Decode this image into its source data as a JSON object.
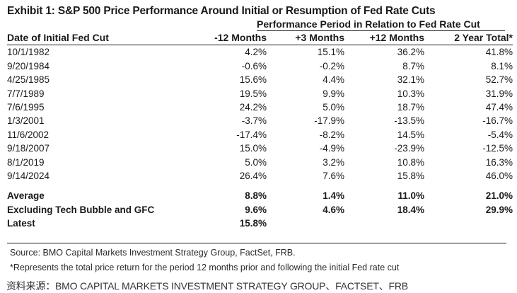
{
  "title": "Exhibit 1: S&P 500 Price Performance Around Initial or Resumption of Fed Rate Cuts",
  "performance_period_label": "Performance Period in Relation to Fed Rate Cut",
  "source": "Source: BMO Capital Markets Investment Strategy Group, FactSet, FRB.",
  "footnote": "*Represents the total price return for the period 12 months prior and following the initial Fed rate cut",
  "caption": "资料来源：BMO CAPITAL MARKETS INVESTMENT STRATEGY GROUP、FACTSET、FRB",
  "chart_data": {
    "type": "table",
    "title": "Exhibit 1: S&P 500 Price Performance Around Initial or Resumption of Fed Rate Cuts",
    "column_group_label": "Performance Period in Relation to Fed Rate Cut",
    "columns": [
      "Date of Initial Fed Cut",
      "-12 Months",
      "+3 Months",
      "+12 Months",
      "2 Year Total*"
    ],
    "rows": [
      [
        "10/1/1982",
        "4.2%",
        "15.1%",
        "36.2%",
        "41.8%"
      ],
      [
        "9/20/1984",
        "-0.6%",
        "-0.2%",
        "8.7%",
        "8.1%"
      ],
      [
        "4/25/1985",
        "15.6%",
        "4.4%",
        "32.1%",
        "52.7%"
      ],
      [
        "7/7/1989",
        "19.5%",
        "9.9%",
        "10.3%",
        "31.9%"
      ],
      [
        "7/6/1995",
        "24.2%",
        "5.0%",
        "18.7%",
        "47.4%"
      ],
      [
        "1/3/2001",
        "-3.7%",
        "-17.9%",
        "-13.5%",
        "-16.7%"
      ],
      [
        "11/6/2002",
        "-17.4%",
        "-8.2%",
        "14.5%",
        "-5.4%"
      ],
      [
        "9/18/2007",
        "15.0%",
        "-4.9%",
        "-23.9%",
        "-12.5%"
      ],
      [
        "8/1/2019",
        "5.0%",
        "3.2%",
        "10.8%",
        "16.3%"
      ],
      [
        "9/14/2024",
        "26.4%",
        "7.6%",
        "15.8%",
        "46.0%"
      ]
    ],
    "summary_rows": [
      [
        "Average",
        "8.8%",
        "1.4%",
        "11.0%",
        "21.0%"
      ],
      [
        "Excluding Tech Bubble and GFC",
        "9.6%",
        "4.6%",
        "18.4%",
        "29.9%"
      ],
      [
        "Latest",
        "15.8%",
        "",
        "",
        ""
      ]
    ]
  }
}
